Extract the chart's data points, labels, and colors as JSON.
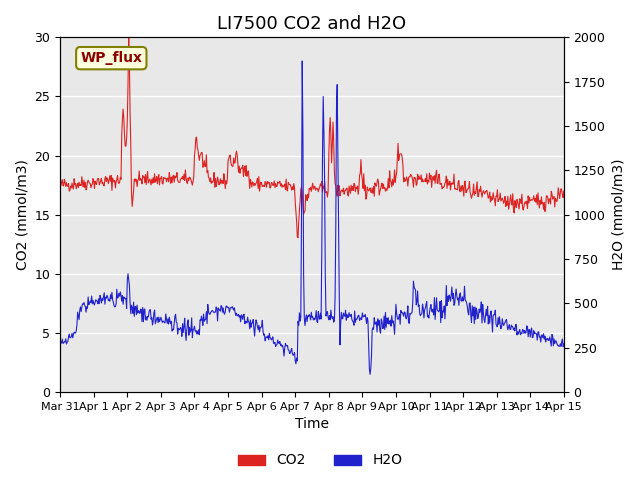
{
  "title": "LI7500 CO2 and H2O",
  "xlabel": "Time",
  "ylabel_left": "CO2 (mmol/m3)",
  "ylabel_right": "H2O (mmol/m3)",
  "annotation": "WP_flux",
  "xlim_start": "2000-03-31",
  "xlim_end": "2000-04-15",
  "ylim_left": [
    0,
    30
  ],
  "ylim_right": [
    0,
    2000
  ],
  "co2_color": "#dd2222",
  "h2o_color": "#2222cc",
  "legend_co2": "CO2",
  "legend_h2o": "H2O",
  "bg_color": "#f0f0f0",
  "inner_bg": "#e8e8e8",
  "tick_fontsize": 9,
  "title_fontsize": 13,
  "label_fontsize": 10
}
